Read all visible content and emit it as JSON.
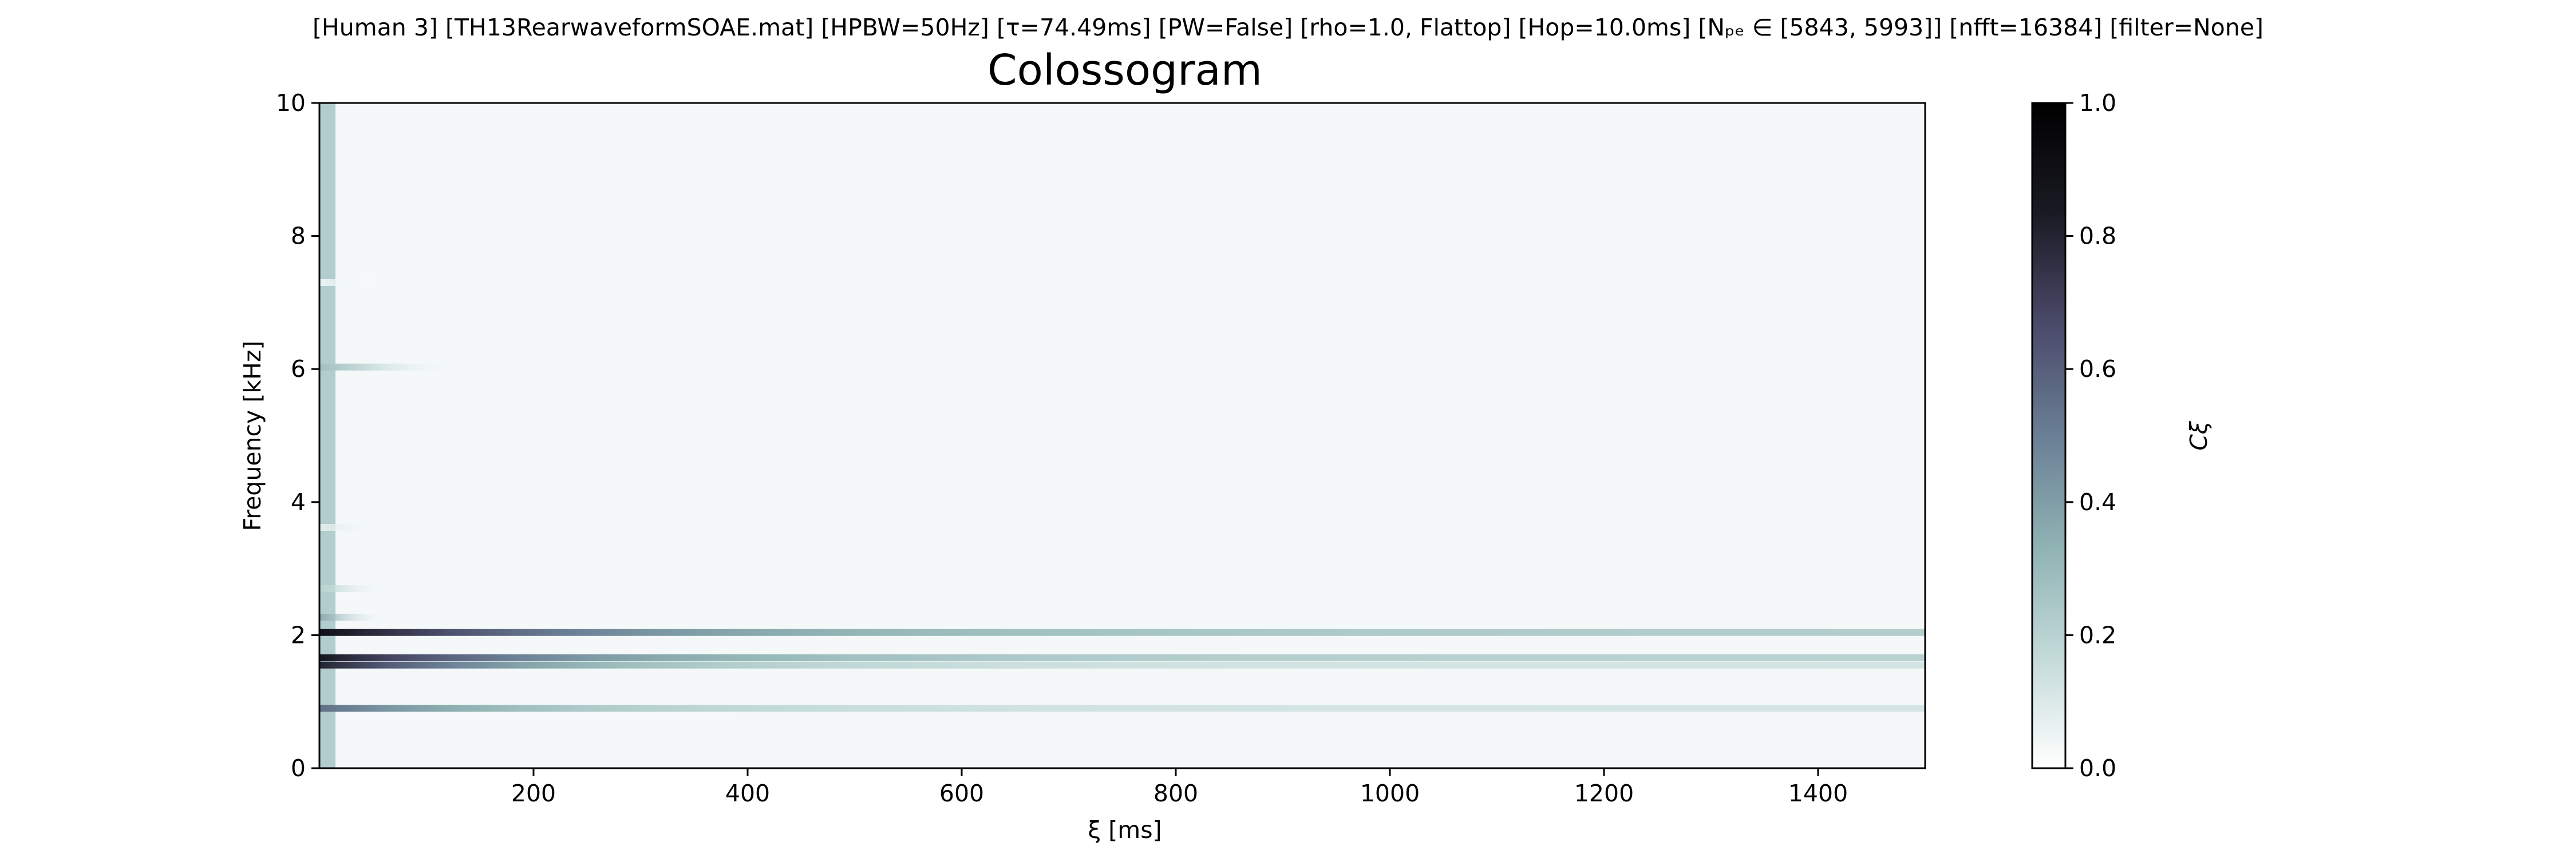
{
  "chart_data": {
    "type": "heatmap",
    "suptitle": "[Human 3]   [TH13RearwaveformSOAE.mat]   [HPBW=50Hz]   [τ=74.49ms]   [PW=False]   [rho=1.0, Flattop]   [Hop=10.0ms]   [Nₚₑ ∈ [5843, 5993]]   [nfft=16384]   [filter=None]",
    "title": "Colossogram",
    "xlabel": "ξ [ms]",
    "ylabel": "Frequency [kHz]",
    "xlim": [
      0,
      1500
    ],
    "ylim": [
      0,
      10
    ],
    "xticks": [
      200,
      400,
      600,
      800,
      1000,
      1200,
      1400
    ],
    "yticks": [
      0,
      2,
      4,
      6,
      8,
      10
    ],
    "colorbar": {
      "label": "Cξ",
      "range": [
        0.0,
        1.0
      ],
      "ticks": [
        0.0,
        0.2,
        0.4,
        0.6,
        0.8,
        1.0
      ],
      "tick_labels": [
        "0.0",
        "0.2",
        "0.4",
        "0.6",
        "0.8",
        "1.0"
      ],
      "colormap": [
        "#ffffff",
        "#c3dad9",
        "#8fb2b3",
        "#6a7f95",
        "#4a4a6a",
        "#1a1a24",
        "#000000"
      ]
    },
    "bands": [
      {
        "freq_khz": 2.04,
        "peak": 0.9,
        "decay_ms": 260,
        "floor": 0.22
      },
      {
        "freq_khz": 1.66,
        "peak": 0.85,
        "decay_ms": 230,
        "floor": 0.2
      },
      {
        "freq_khz": 1.55,
        "peak": 0.8,
        "decay_ms": 200,
        "floor": 0.12
      },
      {
        "freq_khz": 0.9,
        "peak": 0.55,
        "decay_ms": 190,
        "floor": 0.12
      },
      {
        "freq_khz": 2.27,
        "peak": 0.35,
        "decay_ms": 25,
        "floor": 0.0
      },
      {
        "freq_khz": 2.7,
        "peak": 0.2,
        "decay_ms": 30,
        "floor": 0.0
      },
      {
        "freq_khz": 6.03,
        "peak": 0.28,
        "decay_ms": 60,
        "floor": 0.0
      },
      {
        "freq_khz": 3.62,
        "peak": 0.08,
        "decay_ms": 40,
        "floor": 0.0
      },
      {
        "freq_khz": 7.3,
        "peak": 0.05,
        "decay_ms": 40,
        "floor": 0.0
      }
    ],
    "background_level": 0.03,
    "onset_level": 0.22,
    "onset_width_ms": 15
  }
}
